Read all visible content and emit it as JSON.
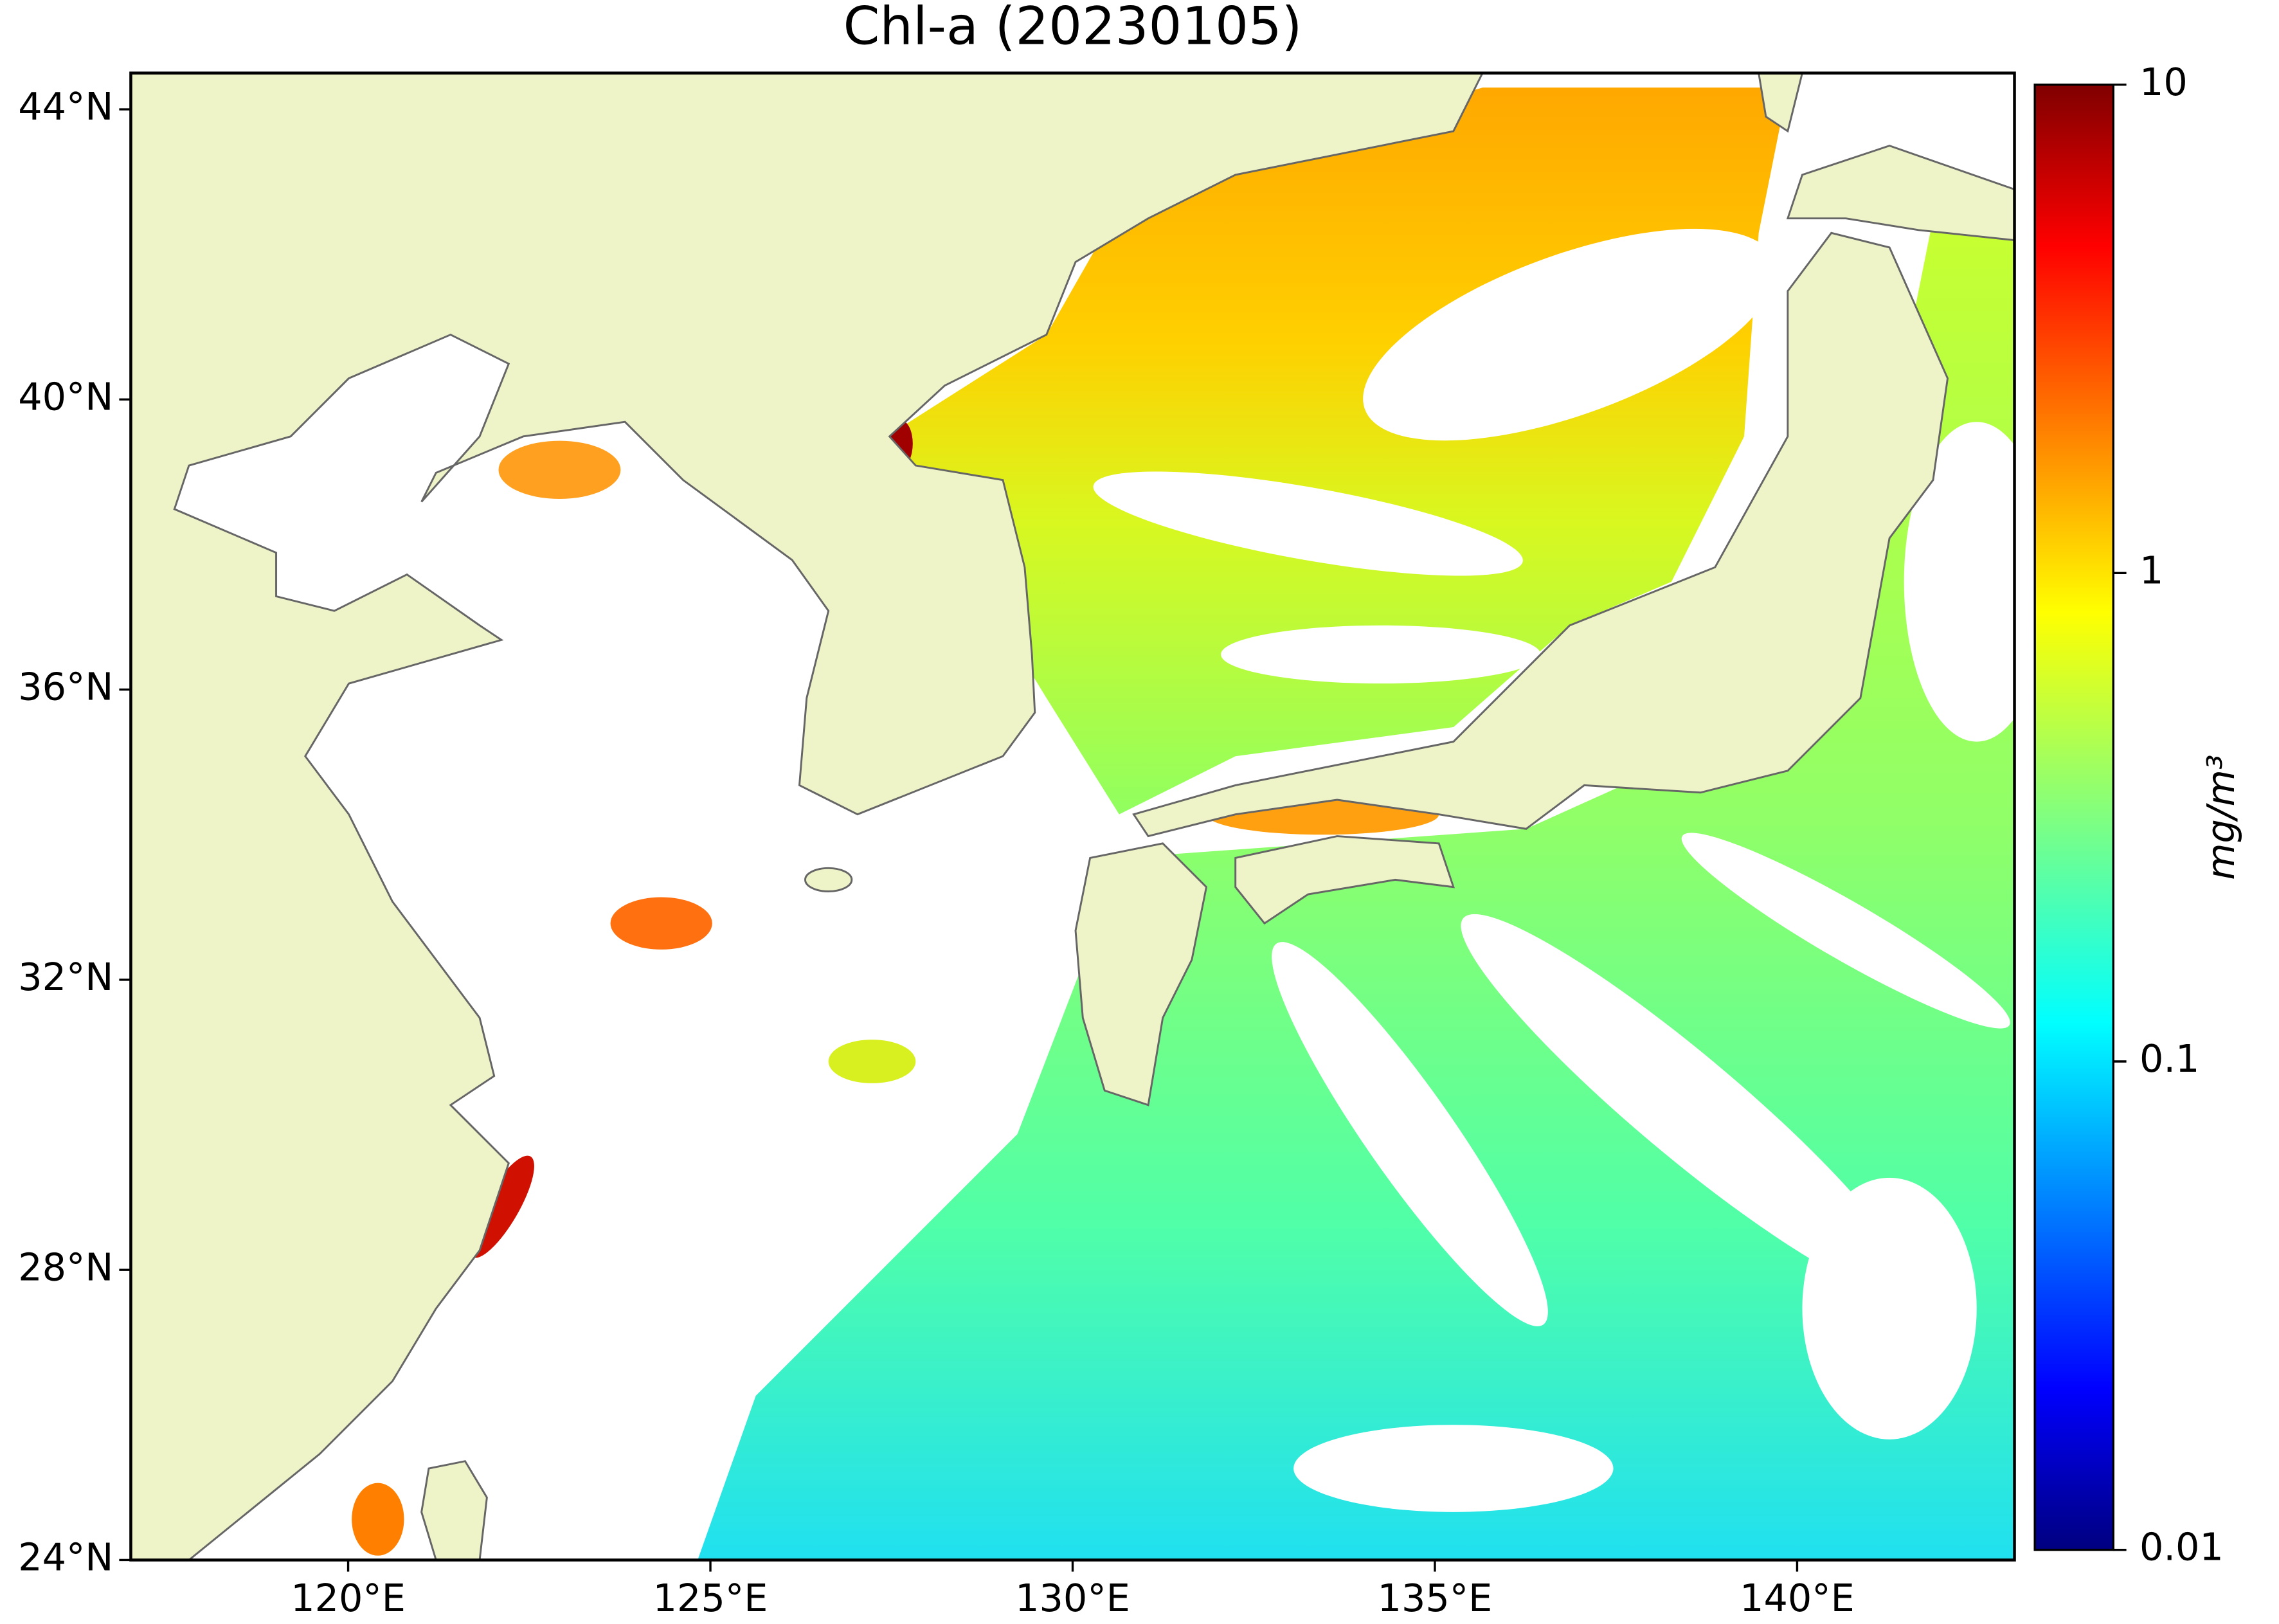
{
  "map": {
    "title": "Chl-a (20230105)",
    "xlim": [
      117,
      143
    ],
    "ylim": [
      24,
      44.5
    ],
    "xticks": [
      {
        "value": 120,
        "label": "120°E"
      },
      {
        "value": 125,
        "label": "125°E"
      },
      {
        "value": 130,
        "label": "130°E"
      },
      {
        "value": 135,
        "label": "135°E"
      },
      {
        "value": 140,
        "label": "140°E"
      }
    ],
    "yticks": [
      {
        "value": 24,
        "label": "24°N"
      },
      {
        "value": 28,
        "label": "28°N"
      },
      {
        "value": 32,
        "label": "32°N"
      },
      {
        "value": 36,
        "label": "36°N"
      },
      {
        "value": 40,
        "label": "40°N"
      },
      {
        "value": 44,
        "label": "44°N"
      }
    ],
    "land_color": "#eff3c8"
  },
  "colorbar": {
    "label": "mg/m³",
    "scale": "log",
    "lim": [
      0.01,
      10
    ],
    "ticks": [
      0.01,
      0.1,
      1,
      10
    ]
  }
}
